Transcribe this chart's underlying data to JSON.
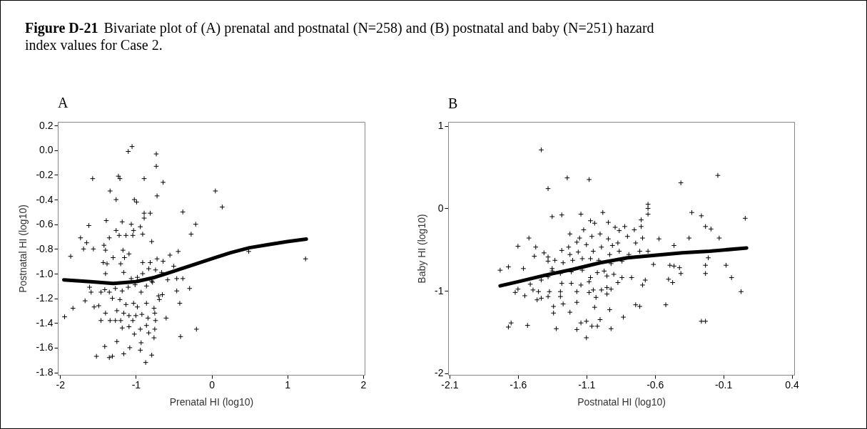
{
  "chart_data": [
    {
      "type": "scatter",
      "title": "A",
      "xlabel": "Prenatal HI (log10)",
      "ylabel": "Postnatal HI (log10)",
      "annotations": [
        "Figure D-21",
        "Bivariate plot of (A) prenatal and postnatal (N=258) and (B) postnatal and baby (N=251) hazard index values for Case 2."
      ],
      "xlim": [
        -2.03,
        2.02
      ],
      "ylim": [
        -1.82,
        0.23
      ],
      "xticks": [
        -2,
        -1,
        0,
        1,
        2
      ],
      "yticks": [
        0.2,
        {
          "value": 0,
          "label": "0.0"
        },
        -0.2,
        -0.4,
        -0.6,
        -0.8,
        {
          "value": -1,
          "label": "-1.0"
        },
        -1.2,
        -1.4,
        -1.6,
        -1.8
      ],
      "series": [
        {
          "marker": "cross",
          "color": "#000000",
          "x": [
            -1.1,
            -1.05,
            -0.73,
            -0.73,
            -1.57,
            -1.23,
            -1.21,
            -0.89,
            -0.64,
            -1.34,
            -1.26,
            -1.02,
            -0.99,
            -0.72,
            0.05,
            0.14,
            -0.38,
            -0.89,
            -0.81,
            -0.89,
            -1.39,
            -1.18,
            -1.62,
            -1.06,
            -0.94,
            -1.03,
            -0.21,
            -0.27,
            -1.26,
            -1.73,
            -1.65,
            -1.69,
            -1.56,
            -1.86,
            -1.42,
            -1.4,
            -1.35,
            -1.22,
            -1.13,
            -1.04,
            -0.91,
            -0.79,
            -0.44,
            -0.55,
            0.49,
            1.24,
            -1.3,
            -1.17,
            -1.15,
            -1.09,
            -1.43,
            -1.38,
            -1.2,
            -0.91,
            -0.81,
            -0.72,
            -0.64,
            -0.5,
            -0.83,
            -0.74,
            -0.66,
            -1.4,
            -1.16,
            -0.91,
            -1.06,
            -0.98,
            -0.46,
            -0.38,
            -0.58,
            -0.79,
            -1.61,
            -1.59,
            -1.46,
            -1.41,
            -1.35,
            -1.27,
            -1.18,
            -1.1,
            -1.01,
            -0.93,
            -0.86,
            -0.78,
            -0.7,
            -0.65,
            -0.46,
            -0.29,
            -1.67,
            -1.83,
            -1.55,
            -1.49,
            -1.31,
            -1.21,
            -1.13,
            -1.03,
            -0.98,
            -0.86,
            -0.76,
            -0.69,
            -0.42,
            -1.94,
            -1.4,
            -1.25,
            -1.16,
            -1.09,
            -1.0,
            -0.92,
            -0.84,
            -0.75,
            -1.46,
            -1.34,
            -1.27,
            -1.2,
            -1.04,
            -0.74,
            -0.6,
            -1.18,
            -1.09,
            -0.94,
            -0.86,
            -0.75,
            -1.02,
            -0.83,
            -0.2,
            -0.41,
            -0.76,
            -1.25,
            -0.93,
            -1.41,
            -1.08,
            -0.94,
            -1.52,
            -1.35,
            -1.31,
            -1.16,
            -0.79,
            -0.87
          ],
          "values": [
            -0.01,
            0.03,
            -0.03,
            -0.13,
            -0.23,
            -0.21,
            -0.23,
            -0.23,
            -0.26,
            -0.33,
            -0.4,
            -0.4,
            -0.42,
            -0.37,
            -0.33,
            -0.46,
            -0.5,
            -0.51,
            -0.51,
            -0.55,
            -0.57,
            -0.58,
            -0.61,
            -0.6,
            -0.62,
            -0.65,
            -0.6,
            -0.68,
            -0.65,
            -0.71,
            -0.75,
            -0.8,
            -0.8,
            -0.86,
            -0.77,
            -0.81,
            -0.71,
            -0.69,
            -0.69,
            -0.69,
            -0.68,
            -0.74,
            -0.82,
            -0.85,
            -0.82,
            -0.88,
            -0.87,
            -0.81,
            -0.87,
            -0.84,
            -0.91,
            -0.92,
            -0.92,
            -0.91,
            -0.91,
            -0.88,
            -0.9,
            -0.94,
            -0.96,
            -0.97,
            -0.99,
            -1.0,
            -0.99,
            -1.0,
            -1.04,
            -1.03,
            -1.04,
            -1.04,
            -1.05,
            -1.06,
            -1.11,
            -1.15,
            -1.15,
            -1.13,
            -1.15,
            -1.12,
            -1.14,
            -1.11,
            -1.09,
            -1.15,
            -1.1,
            -1.07,
            -1.18,
            -1.17,
            -1.14,
            -1.12,
            -1.22,
            -1.28,
            -1.27,
            -1.26,
            -1.2,
            -1.21,
            -1.25,
            -1.24,
            -1.27,
            -1.24,
            -1.28,
            -1.21,
            -1.24,
            -1.35,
            -1.32,
            -1.3,
            -1.32,
            -1.34,
            -1.34,
            -1.33,
            -1.36,
            -1.32,
            -1.38,
            -1.38,
            -1.38,
            -1.38,
            -1.38,
            -1.38,
            -1.36,
            -1.44,
            -1.43,
            -1.45,
            -1.42,
            -1.45,
            -1.49,
            -1.48,
            -1.45,
            -1.51,
            -1.52,
            -1.55,
            -1.56,
            -1.59,
            -1.6,
            -1.62,
            -1.67,
            -1.68,
            -1.67,
            -1.65,
            -1.66,
            -1.72
          ]
        },
        {
          "type": "line",
          "marker": "none",
          "color": "#000000",
          "x": [
            -1.95,
            -1.6,
            -1.3,
            -1.0,
            -0.75,
            -0.5,
            -0.25,
            0,
            0.25,
            0.5,
            0.75,
            1.0,
            1.25
          ],
          "values": [
            -1.05,
            -1.065,
            -1.08,
            -1.065,
            -1.03,
            -0.98,
            -0.93,
            -0.88,
            -0.83,
            -0.79,
            -0.765,
            -0.74,
            -0.72
          ]
        }
      ]
    },
    {
      "type": "scatter",
      "title": "B",
      "xlabel": "Postnatal HI (log10)",
      "ylabel": "Baby HI (log10)",
      "xlim": [
        -2.11,
        0.418
      ],
      "ylim": [
        -2.02,
        1.05
      ],
      "xticks": [
        -2.1,
        -1.6,
        -1.1,
        -0.6,
        -0.1,
        0.4
      ],
      "yticks": [
        -2,
        -1,
        0,
        1
      ],
      "series": [
        {
          "marker": "cross",
          "color": "#000000",
          "x": [
            -1.43,
            -1.24,
            -1.08,
            -1.38,
            -0.14,
            -0.41,
            -0.65,
            -0.65,
            -0.65,
            -0.33,
            -0.26,
            0.06,
            -0.23,
            -0.19,
            -0.13,
            -0.35,
            -0.46,
            -0.57,
            -1.35,
            -1.28,
            -1.14,
            -0.98,
            -1.07,
            -1.04,
            -0.94,
            -0.89,
            -0.86,
            -0.82,
            -0.75,
            -0.7,
            -0.7,
            -0.69,
            -0.74,
            -0.8,
            -0.87,
            -0.91,
            -0.94,
            -1.0,
            -1.06,
            -1.12,
            -1.22,
            -1.15,
            -1.17,
            -1.23,
            -1.28,
            -1.22,
            -1.16,
            -1.1,
            -1.05,
            -0.99,
            -0.93,
            -0.86,
            -0.79,
            -0.71,
            -0.65,
            -1.52,
            -1.6,
            -1.47,
            -1.41,
            -1.48,
            -1.38,
            -1.38,
            -1.33,
            -1.27,
            -1.2,
            -1.13,
            -1.07,
            -1.01,
            -0.92,
            -0.84,
            -1.73,
            -1.67,
            -1.56,
            -1.35,
            -1.35,
            -1.29,
            -1.21,
            -1.13,
            -1.02,
            -0.97,
            -0.9,
            -0.61,
            -0.49,
            -0.46,
            -0.42,
            -0.41,
            -0.23,
            -0.23,
            -0.21,
            -0.08,
            -0.04,
            -1.38,
            -1.43,
            -1.28,
            -1.21,
            -1.14,
            -1.08,
            -1.07,
            -0.95,
            -0.87,
            -0.84,
            -0.77,
            -0.67,
            -0.69,
            -0.5,
            -0.47,
            -1.51,
            -1.49,
            -1.6,
            -1.62,
            -1.55,
            -1.45,
            -1.46,
            -1.43,
            -1.38,
            -1.37,
            -1.29,
            -1.29,
            -1.27,
            -1.34,
            -1.34,
            -1.22,
            -1.17,
            -1.17,
            -1.08,
            -1.05,
            -1.04,
            -1.03,
            -0.99,
            -0.95,
            -0.95,
            -0.93,
            -0.92,
            -1.0,
            -1.06,
            -1.1,
            -1.14,
            -1.17,
            -1.02,
            -0.92,
            -0.83,
            -1.1,
            -1.32,
            -1.53,
            -1.67,
            -1.65,
            -0.74,
            -0.71,
            -0.52,
            -0.26,
            -0.23,
            0.03
          ],
          "values": [
            0.71,
            0.37,
            0.35,
            0.24,
            0.4,
            0.31,
            0.05,
            0,
            -0.07,
            -0.05,
            -0.09,
            -0.12,
            -0.22,
            -0.25,
            -0.36,
            -0.36,
            -0.45,
            -0.37,
            -0.1,
            -0.08,
            -0.07,
            -0.05,
            -0.15,
            -0.18,
            -0.17,
            -0.23,
            -0.27,
            -0.22,
            -0.26,
            -0.22,
            -0.14,
            -0.36,
            -0.42,
            -0.34,
            -0.42,
            -0.45,
            -0.37,
            -0.31,
            -0.34,
            -0.26,
            -0.31,
            -0.36,
            -0.41,
            -0.47,
            -0.51,
            -0.56,
            -0.53,
            -0.44,
            -0.52,
            -0.47,
            -0.56,
            -0.52,
            -0.56,
            -0.52,
            -0.52,
            -0.36,
            -0.46,
            -0.47,
            -0.54,
            -0.58,
            -0.59,
            -0.64,
            -0.63,
            -0.66,
            -0.63,
            -0.61,
            -0.61,
            -0.63,
            -0.67,
            -0.64,
            -0.75,
            -0.71,
            -0.73,
            -0.73,
            -0.76,
            -0.79,
            -0.77,
            -0.75,
            -0.78,
            -0.76,
            -0.8,
            -0.68,
            -0.69,
            -0.7,
            -0.72,
            -0.79,
            -0.69,
            -0.79,
            -0.6,
            -0.69,
            -0.84,
            -0.83,
            -0.87,
            -0.91,
            -0.91,
            -0.93,
            -0.89,
            -0.84,
            -0.82,
            -0.9,
            -0.84,
            -0.84,
            -0.87,
            -0.93,
            -0.86,
            -0.9,
            -0.92,
            -0.99,
            -0.98,
            -1.02,
            -1.06,
            -1.01,
            -1.11,
            -1.09,
            -1.07,
            -1.01,
            -1.01,
            -1.07,
            -1.16,
            -1.19,
            -1.27,
            -1.26,
            -1.14,
            -1.01,
            -1.02,
            -0.99,
            -1.2,
            -1.08,
            -0.99,
            -0.96,
            -1.04,
            -1.23,
            -0.98,
            -1.35,
            -1.43,
            -1.37,
            -1.39,
            -1.47,
            -1.43,
            -1.46,
            -1.32,
            -1.57,
            -1.46,
            -1.42,
            -1.44,
            -1.39,
            -1.17,
            -1.19,
            -1.17,
            -1.37,
            -1.37,
            -1.01
          ]
        },
        {
          "type": "line",
          "marker": "none",
          "color": "#000000",
          "x": [
            -1.73,
            -1.6,
            -1.4,
            -1.2,
            -1.0,
            -0.8,
            -0.6,
            -0.4,
            -0.2,
            0.07
          ],
          "values": [
            -0.94,
            -0.89,
            -0.81,
            -0.74,
            -0.66,
            -0.6,
            -0.57,
            -0.54,
            -0.52,
            -0.48
          ]
        }
      ]
    }
  ]
}
